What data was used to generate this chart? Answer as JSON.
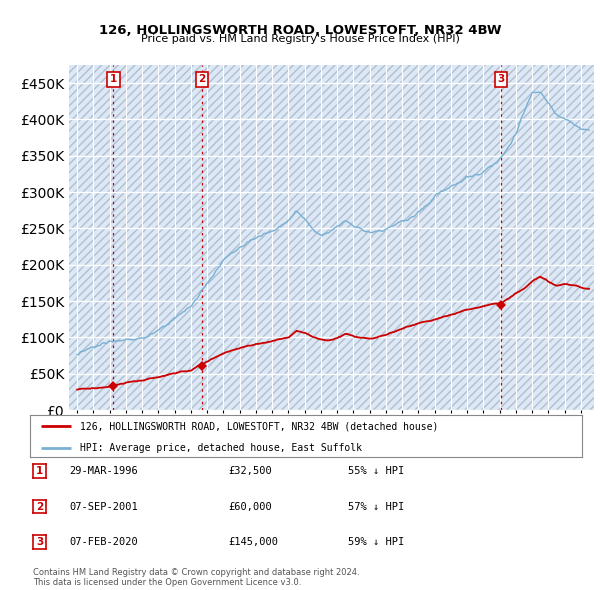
{
  "title": "126, HOLLINGSWORTH ROAD, LOWESTOFT, NR32 4BW",
  "subtitle": "Price paid vs. HM Land Registry's House Price Index (HPI)",
  "legend_line1": "126, HOLLINGSWORTH ROAD, LOWESTOFT, NR32 4BW (detached house)",
  "legend_line2": "HPI: Average price, detached house, East Suffolk",
  "sale_dates": [
    1996.23,
    2001.68,
    2020.09
  ],
  "sale_prices": [
    32500,
    60000,
    145000
  ],
  "sale_labels": [
    "1",
    "2",
    "3"
  ],
  "table_data": [
    [
      "1",
      "29-MAR-1996",
      "£32,500",
      "55% ↓ HPI"
    ],
    [
      "2",
      "07-SEP-2001",
      "£60,000",
      "57% ↓ HPI"
    ],
    [
      "3",
      "07-FEB-2020",
      "£145,000",
      "59% ↓ HPI"
    ]
  ],
  "footer": "Contains HM Land Registry data © Crown copyright and database right 2024.\nThis data is licensed under the Open Government Licence v3.0.",
  "red_color": "#cc0000",
  "blue_color": "#7ab0d4",
  "background_plot": "#dce8f5",
  "hatch_color": "#b0bece",
  "ylim": [
    0,
    475000
  ],
  "xlim_start": 1993.5,
  "xlim_end": 2025.8,
  "yticks": [
    0,
    50000,
    100000,
    150000,
    200000,
    250000,
    300000,
    350000,
    400000,
    450000
  ]
}
